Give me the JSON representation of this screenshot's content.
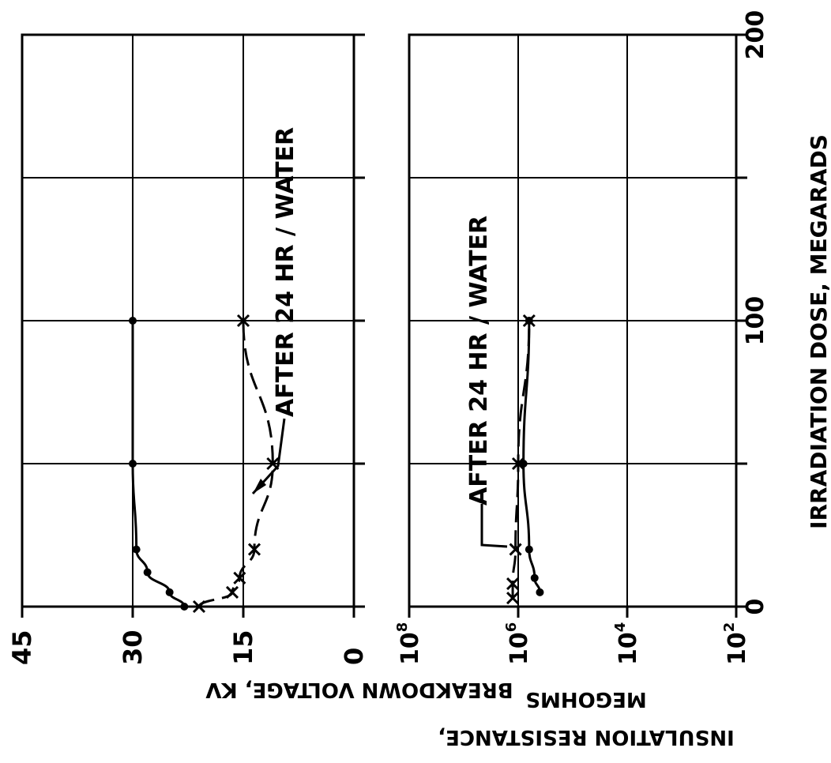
{
  "chart_data": [
    {
      "type": "line",
      "ylabel": "BREAKDOWN VOLTAGE, KV",
      "xlabel": "IRRADIATION DOSE, MEGARADS",
      "xlim": [
        0,
        200
      ],
      "ylim": [
        0,
        45
      ],
      "x_ticks": [
        "0",
        "100",
        "200"
      ],
      "y_ticks": [
        "45",
        "30",
        "15",
        "0"
      ],
      "grid": true,
      "series": [
        {
          "marker": "dot",
          "x": [
            0,
            5,
            12,
            20,
            50,
            100
          ],
          "y": [
            23,
            25,
            28,
            29.5,
            30,
            30
          ]
        },
        {
          "name": "AFTER 24 HR / WATER",
          "marker": "x",
          "x": [
            0,
            5,
            10,
            20,
            50,
            100
          ],
          "y": [
            21,
            16.5,
            15.5,
            13.5,
            11,
            15
          ]
        }
      ],
      "annotations": [
        "AFTER 24 HR / WATER"
      ]
    },
    {
      "type": "line",
      "ylabel": "INSULATION RESISTANCE, MEGOHMS",
      "xlabel": "IRRADIATION DOSE, MEGARADS",
      "yscale": "log",
      "xlim": [
        0,
        200
      ],
      "ylim": [
        100,
        100000000
      ],
      "x_ticks": [
        "0",
        "100",
        "200"
      ],
      "y_ticks": [
        "10^8",
        "10^6",
        "10^4",
        "10^2"
      ],
      "grid": true,
      "series": [
        {
          "marker": "dot",
          "x": [
            5,
            10,
            20,
            50,
            100
          ],
          "y": [
            400000,
            500000,
            630000,
            800000,
            630000
          ]
        },
        {
          "name": "AFTER 24 HR / WATER",
          "marker": "x",
          "x": [
            3,
            8,
            20,
            50,
            100
          ],
          "y": [
            1260000,
            1260000,
            1120000,
            1000000,
            630000
          ]
        }
      ],
      "annotations": [
        "AFTER 24 HR / WATER"
      ]
    }
  ]
}
